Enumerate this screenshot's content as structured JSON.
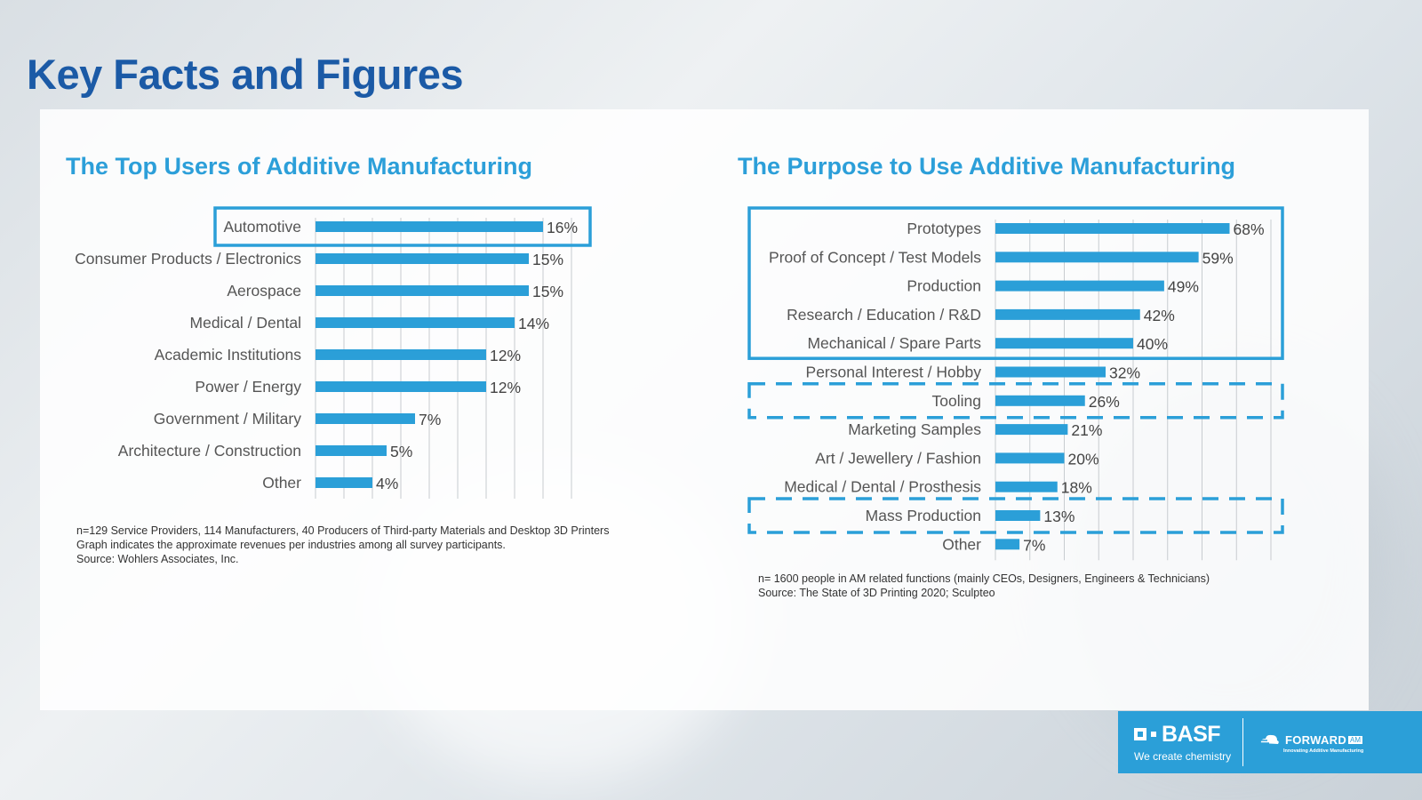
{
  "page": {
    "title": "Key Facts and Figures"
  },
  "colors": {
    "title": "#1b5aa6",
    "accent": "#2c9fd9",
    "bar": "#2b9fd8",
    "highlight_box": "#2b9fd8"
  },
  "chart_data": [
    {
      "type": "bar",
      "orientation": "horizontal",
      "title": "The Top Users of Additive Manufacturing",
      "categories": [
        "Automotive",
        "Consumer Products / Electronics",
        "Aerospace",
        "Medical / Dental",
        "Academic Institutions",
        "Power / Energy",
        "Government / Military",
        "Architecture / Construction",
        "Other"
      ],
      "values": [
        16,
        15,
        15,
        14,
        12,
        12,
        7,
        5,
        4
      ],
      "data_labels": [
        "16%",
        "15%",
        "15%",
        "14%",
        "12%",
        "12%",
        "7%",
        "5%",
        "4%"
      ],
      "xlim": [
        0,
        18
      ],
      "grid": true,
      "highlight": {
        "style": "solid",
        "categories": [
          "Automotive"
        ]
      },
      "footnotes": [
        "n=129 Service Providers, 114 Manufacturers, 40 Producers of Third-party Materials and Desktop 3D Printers",
        "Graph indicates the approximate revenues per industries among all survey participants.",
        "Source: Wohlers Associates, Inc."
      ]
    },
    {
      "type": "bar",
      "orientation": "horizontal",
      "title": "The Purpose to Use Additive Manufacturing",
      "categories": [
        "Prototypes",
        "Proof of Concept / Test Models",
        "Production",
        "Research / Education / R&D",
        "Mechanical / Spare Parts",
        "Personal Interest / Hobby",
        "Tooling",
        "Marketing Samples",
        "Art / Jewellery / Fashion",
        "Medical / Dental / Prosthesis",
        "Mass Production",
        "Other"
      ],
      "values": [
        68,
        59,
        49,
        42,
        40,
        32,
        26,
        21,
        20,
        18,
        13,
        7
      ],
      "data_labels": [
        "68%",
        "59%",
        "49%",
        "42%",
        "40%",
        "32%",
        "26%",
        "21%",
        "20%",
        "18%",
        "13%",
        "7%"
      ],
      "xlim": [
        0,
        80
      ],
      "grid": true,
      "highlight": {
        "solid": [
          "Prototypes",
          "Proof of Concept / Test Models",
          "Production",
          "Research / Education / R&D",
          "Mechanical / Spare Parts"
        ],
        "dashed": [
          [
            "Tooling"
          ],
          [
            "Mass Production"
          ]
        ]
      },
      "footnotes": [
        "n= 1600 people in AM related functions (mainly CEOs, Designers, Engineers & Technicians)",
        "Source: The State of 3D Printing 2020; Sculpteo"
      ]
    }
  ],
  "branding": {
    "basf_name": "BASF",
    "basf_tagline": "We create chemistry",
    "forward_name": "FORWARD",
    "forward_badge": "AM",
    "forward_tagline": "Innovating Additive Manufacturing"
  }
}
